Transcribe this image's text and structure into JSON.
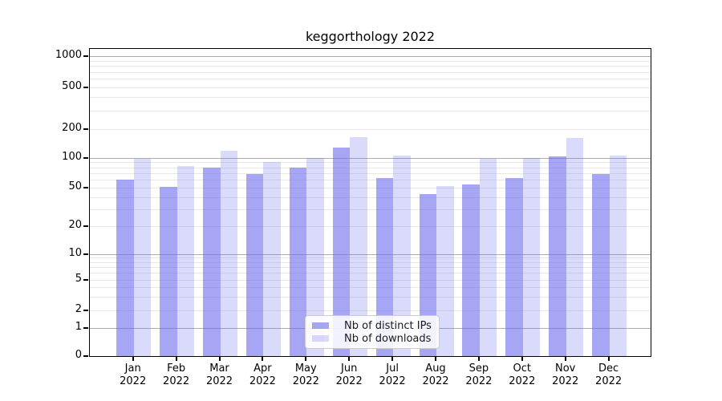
{
  "title": "keggorthology 2022",
  "colors": {
    "bar_distinct_ips": "rgba(107,107,237,0.6)",
    "bar_downloads": "rgba(107,107,237,0.25)",
    "grid_major": "#adadad",
    "grid_minor": "#e8e8e8"
  },
  "legend": {
    "items": [
      {
        "label": "Nb of distinct IPs",
        "swatch": "rgba(107,107,237,0.6)"
      },
      {
        "label": "Nb of downloads",
        "swatch": "rgba(107,107,237,0.25)"
      }
    ]
  },
  "axes": {
    "y": {
      "ticks": [
        {
          "label": "1000",
          "value": 1000
        },
        {
          "label": "500",
          "value": 500
        },
        {
          "label": "200",
          "value": 200
        },
        {
          "label": "100",
          "value": 100
        },
        {
          "label": "50",
          "value": 50
        },
        {
          "label": "20",
          "value": 20
        },
        {
          "label": "10",
          "value": 10
        },
        {
          "label": "5",
          "value": 5
        },
        {
          "label": "2",
          "value": 2
        },
        {
          "label": "1",
          "value": 1
        },
        {
          "label": "0",
          "value": 0
        }
      ],
      "major_grid": [
        1,
        10,
        100,
        1000
      ],
      "minor_grid": [
        2,
        3,
        4,
        5,
        6,
        7,
        8,
        9,
        20,
        30,
        40,
        50,
        60,
        70,
        80,
        90,
        200,
        300,
        400,
        500,
        600,
        700,
        800,
        900
      ]
    },
    "x": {
      "categories": [
        {
          "month": "Jan",
          "year": "2022"
        },
        {
          "month": "Feb",
          "year": "2022"
        },
        {
          "month": "Mar",
          "year": "2022"
        },
        {
          "month": "Apr",
          "year": "2022"
        },
        {
          "month": "May",
          "year": "2022"
        },
        {
          "month": "Jun",
          "year": "2022"
        },
        {
          "month": "Jul",
          "year": "2022"
        },
        {
          "month": "Aug",
          "year": "2022"
        },
        {
          "month": "Sep",
          "year": "2022"
        },
        {
          "month": "Oct",
          "year": "2022"
        },
        {
          "month": "Nov",
          "year": "2022"
        },
        {
          "month": "Dec",
          "year": "2022"
        }
      ]
    }
  },
  "chart_data": {
    "type": "bar",
    "title": "keggorthology 2022",
    "categories": [
      "Jan 2022",
      "Feb 2022",
      "Mar 2022",
      "Apr 2022",
      "May 2022",
      "Jun 2022",
      "Jul 2022",
      "Aug 2022",
      "Sep 2022",
      "Oct 2022",
      "Nov 2022",
      "Dec 2022"
    ],
    "series": [
      {
        "name": "Nb of distinct IPs",
        "values": [
          60,
          51,
          80,
          68,
          80,
          127,
          62,
          43,
          54,
          63,
          104,
          69
        ]
      },
      {
        "name": "Nb of downloads",
        "values": [
          97,
          83,
          118,
          90,
          100,
          165,
          106,
          52,
          97,
          100,
          160,
          105
        ]
      }
    ],
    "yscale": "symlog",
    "yticks": [
      0,
      1,
      2,
      5,
      10,
      20,
      50,
      100,
      200,
      500,
      1000
    ],
    "ylim": [
      0,
      1200
    ],
    "xlabel": "",
    "ylabel": "",
    "grid": "both",
    "legend_position": "lower center"
  }
}
